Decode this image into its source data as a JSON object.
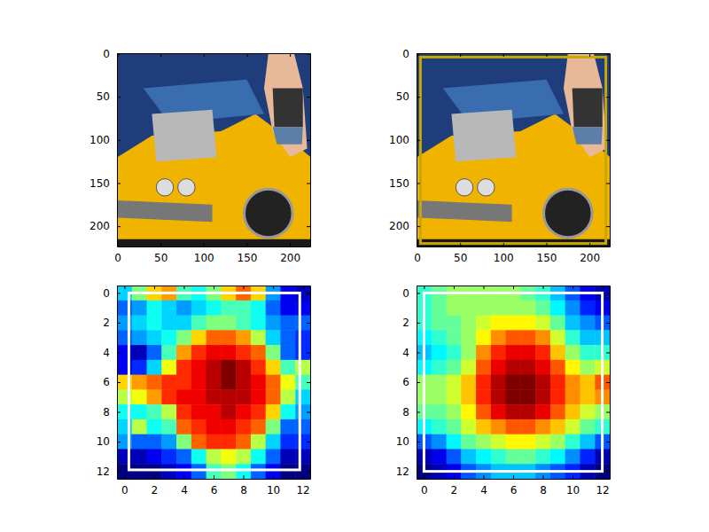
{
  "chart_data": [
    {
      "type": "image",
      "xlim": [
        -0.5,
        223.5
      ],
      "ylim": [
        223.5,
        -0.5
      ],
      "xticks": [
        0,
        50,
        100,
        150,
        200
      ],
      "yticks": [
        0,
        50,
        100,
        150,
        200
      ]
    },
    {
      "type": "image",
      "xlim": [
        -0.5,
        223.5
      ],
      "ylim": [
        223.5,
        -0.5
      ],
      "xticks": [
        0,
        50,
        100,
        150,
        200
      ],
      "yticks": [
        0,
        50,
        100,
        150,
        200
      ],
      "box": {
        "x": [
          4,
          219
        ],
        "y": [
          4,
          220
        ],
        "color": "#c8a800"
      }
    },
    {
      "type": "heatmap",
      "color": "jet",
      "xlim": [
        -0.5,
        12.5
      ],
      "ylim": [
        12.5,
        -0.5
      ],
      "xticks": [
        0,
        2,
        4,
        6,
        8,
        10,
        12
      ],
      "yticks": [
        0,
        2,
        4,
        6,
        8,
        10,
        12
      ],
      "box": {
        "x": [
          0.3,
          11.8
        ],
        "y": [
          0,
          11.9
        ],
        "color": "#ffffff"
      },
      "cells": [
        [
          0.4,
          0.55,
          0.7,
          0.75,
          0.5,
          0.45,
          0.55,
          0.7,
          0.8,
          0.7,
          0.35,
          0.2,
          0.15
        ],
        [
          0.3,
          0.35,
          0.45,
          0.4,
          0.35,
          0.4,
          0.45,
          0.5,
          0.5,
          0.45,
          0.3,
          0.2,
          0.2
        ],
        [
          0.35,
          0.4,
          0.45,
          0.4,
          0.4,
          0.5,
          0.55,
          0.55,
          0.5,
          0.45,
          0.35,
          0.3,
          0.3
        ],
        [
          0.3,
          0.35,
          0.4,
          0.45,
          0.55,
          0.7,
          0.8,
          0.8,
          0.75,
          0.6,
          0.4,
          0.3,
          0.25
        ],
        [
          0.2,
          0.15,
          0.3,
          0.5,
          0.75,
          0.85,
          0.9,
          0.9,
          0.85,
          0.8,
          0.55,
          0.3,
          0.25
        ],
        [
          0.2,
          0.25,
          0.4,
          0.65,
          0.85,
          0.9,
          0.95,
          1.0,
          0.95,
          0.85,
          0.7,
          0.5,
          0.6
        ],
        [
          0.7,
          0.75,
          0.8,
          0.85,
          0.85,
          0.9,
          0.95,
          1.0,
          0.95,
          0.9,
          0.8,
          0.65,
          0.5
        ],
        [
          0.6,
          0.65,
          0.75,
          0.85,
          0.9,
          0.9,
          0.95,
          0.95,
          0.95,
          0.9,
          0.8,
          0.6,
          0.4
        ],
        [
          0.45,
          0.45,
          0.5,
          0.6,
          0.85,
          0.9,
          0.9,
          0.95,
          0.9,
          0.85,
          0.7,
          0.45,
          0.35
        ],
        [
          0.4,
          0.6,
          0.45,
          0.5,
          0.8,
          0.85,
          0.9,
          0.9,
          0.85,
          0.8,
          0.55,
          0.3,
          0.3
        ],
        [
          0.35,
          0.3,
          0.3,
          0.35,
          0.55,
          0.8,
          0.85,
          0.85,
          0.8,
          0.6,
          0.4,
          0.25,
          0.25
        ],
        [
          0.15,
          0.15,
          0.2,
          0.25,
          0.3,
          0.45,
          0.6,
          0.65,
          0.6,
          0.45,
          0.3,
          0.15,
          0.15
        ],
        [
          0.1,
          0.1,
          0.1,
          0.15,
          0.2,
          0.3,
          0.5,
          0.55,
          0.45,
          0.3,
          0.2,
          0.1,
          0.1
        ]
      ]
    },
    {
      "type": "heatmap",
      "color": "jet",
      "xlim": [
        -0.5,
        12.5
      ],
      "ylim": [
        12.5,
        -0.5
      ],
      "xticks": [
        0,
        2,
        4,
        6,
        8,
        10,
        12
      ],
      "yticks": [
        0,
        2,
        4,
        6,
        8,
        10,
        12
      ],
      "box": {
        "x": [
          0,
          12
        ],
        "y": [
          0,
          12
        ],
        "color": "#ffffff"
      },
      "cells": [
        [
          0.45,
          0.5,
          0.55,
          0.55,
          0.55,
          0.55,
          0.55,
          0.5,
          0.45,
          0.35,
          0.25,
          0.15,
          0.1
        ],
        [
          0.45,
          0.5,
          0.55,
          0.55,
          0.55,
          0.55,
          0.55,
          0.55,
          0.5,
          0.4,
          0.3,
          0.2,
          0.15
        ],
        [
          0.45,
          0.5,
          0.5,
          0.55,
          0.6,
          0.65,
          0.65,
          0.65,
          0.6,
          0.5,
          0.35,
          0.3,
          0.25
        ],
        [
          0.4,
          0.45,
          0.5,
          0.55,
          0.65,
          0.75,
          0.8,
          0.8,
          0.75,
          0.6,
          0.45,
          0.35,
          0.35
        ],
        [
          0.35,
          0.4,
          0.45,
          0.55,
          0.75,
          0.85,
          0.9,
          0.9,
          0.85,
          0.7,
          0.55,
          0.45,
          0.45
        ],
        [
          0.4,
          0.45,
          0.5,
          0.6,
          0.8,
          0.9,
          0.95,
          0.95,
          0.9,
          0.8,
          0.65,
          0.55,
          0.6
        ],
        [
          0.55,
          0.55,
          0.6,
          0.7,
          0.85,
          0.95,
          1.0,
          1.0,
          0.95,
          0.85,
          0.75,
          0.7,
          0.8
        ],
        [
          0.55,
          0.55,
          0.6,
          0.7,
          0.85,
          0.95,
          1.0,
          1.0,
          0.95,
          0.85,
          0.75,
          0.7,
          0.75
        ],
        [
          0.5,
          0.5,
          0.55,
          0.65,
          0.8,
          0.9,
          0.95,
          0.95,
          0.9,
          0.8,
          0.7,
          0.6,
          0.55
        ],
        [
          0.4,
          0.45,
          0.5,
          0.6,
          0.7,
          0.75,
          0.8,
          0.8,
          0.75,
          0.7,
          0.6,
          0.5,
          0.45
        ],
        [
          0.25,
          0.3,
          0.4,
          0.5,
          0.55,
          0.6,
          0.65,
          0.65,
          0.6,
          0.55,
          0.45,
          0.35,
          0.25
        ],
        [
          0.1,
          0.15,
          0.25,
          0.35,
          0.4,
          0.45,
          0.5,
          0.5,
          0.45,
          0.4,
          0.3,
          0.2,
          0.1
        ],
        [
          0.05,
          0.1,
          0.15,
          0.25,
          0.3,
          0.35,
          0.35,
          0.35,
          0.3,
          0.25,
          0.2,
          0.1,
          0.05
        ]
      ]
    }
  ]
}
